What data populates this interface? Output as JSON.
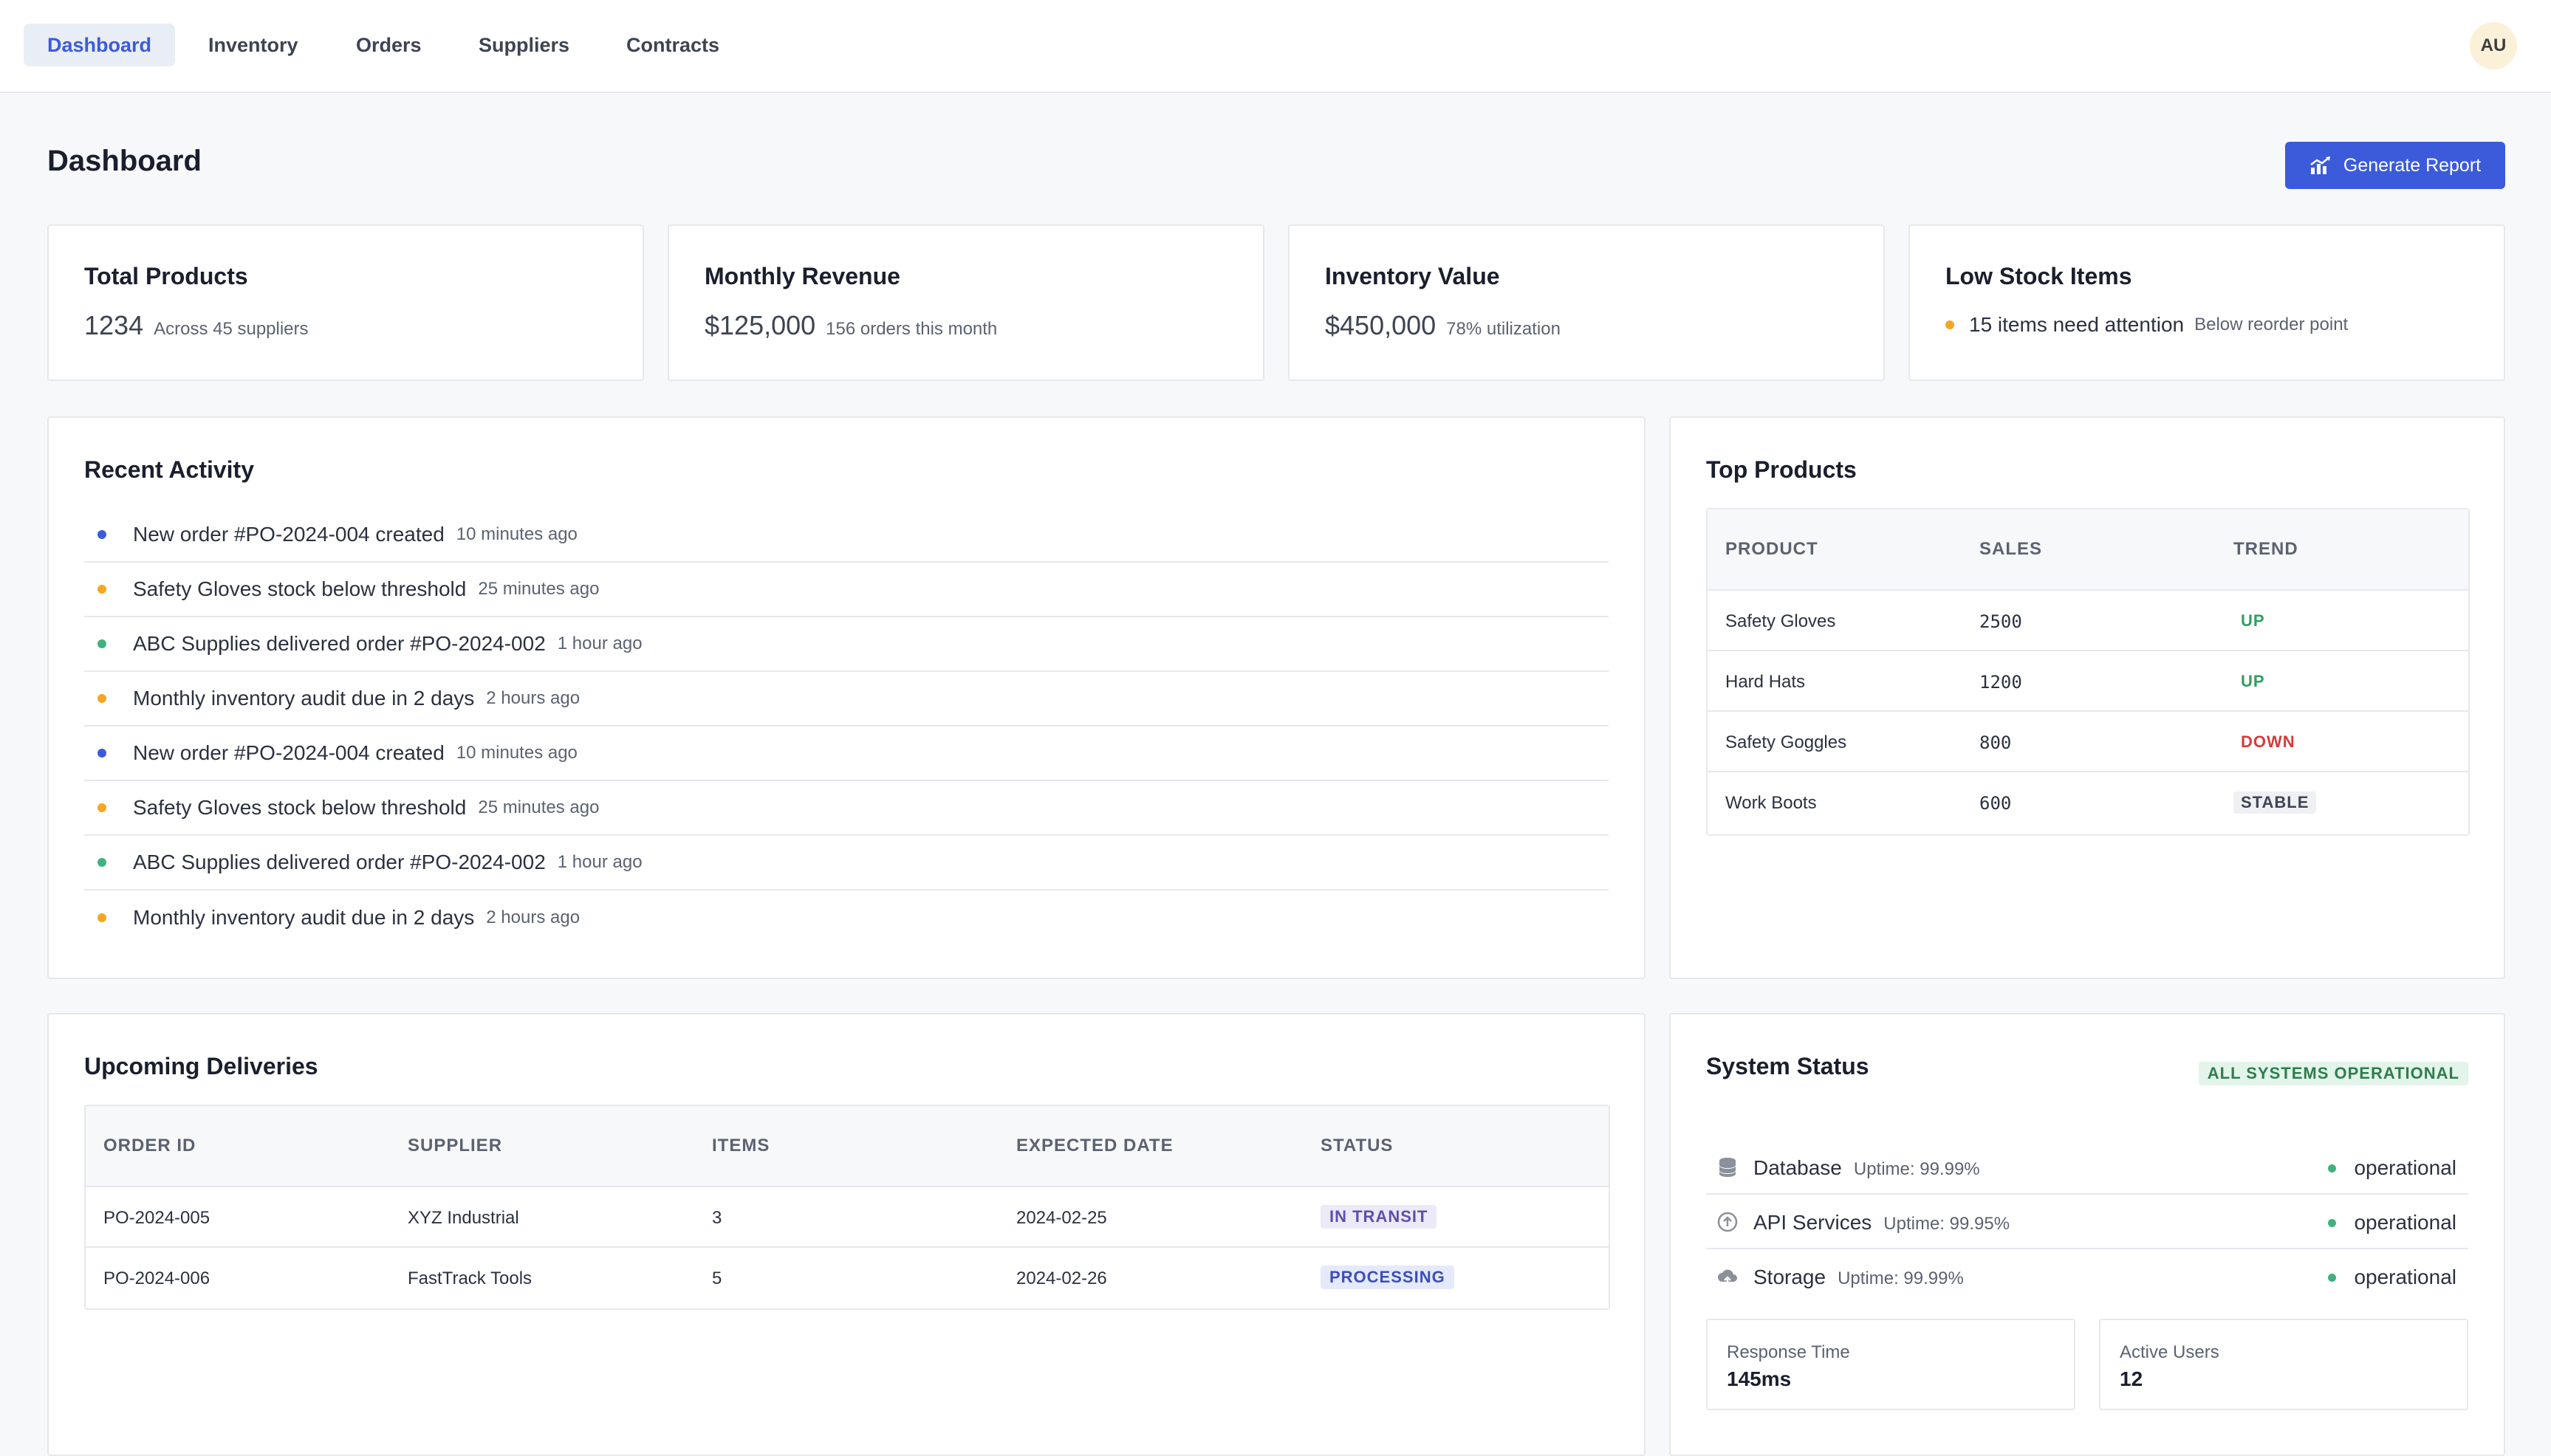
{
  "nav": {
    "tabs": [
      {
        "label": "Dashboard",
        "active": true
      },
      {
        "label": "Inventory"
      },
      {
        "label": "Orders"
      },
      {
        "label": "Suppliers"
      },
      {
        "label": "Contracts"
      }
    ],
    "avatar_initials": "AU"
  },
  "header": {
    "title": "Dashboard",
    "generate_label": "Generate Report"
  },
  "stats": [
    {
      "title": "Total Products",
      "value": "1234",
      "sub": "Across 45 suppliers"
    },
    {
      "title": "Monthly Revenue",
      "value": "$125,000",
      "sub": "156 orders this month"
    },
    {
      "title": "Inventory Value",
      "value": "$450,000",
      "sub": "78% utilization"
    },
    {
      "title": "Low Stock Items",
      "value": "15 items need attention",
      "sub": "Below reorder point",
      "dot_color": "#f5a623"
    }
  ],
  "activity": {
    "title": "Recent Activity",
    "items": [
      {
        "text": "New order #PO-2024-004 created",
        "time": "10 minutes ago",
        "color": "#3b5bdb"
      },
      {
        "text": "Safety Gloves stock below threshold",
        "time": "25 minutes ago",
        "color": "#f5a623"
      },
      {
        "text": "ABC Supplies delivered order #PO-2024-002",
        "time": "1 hour ago",
        "color": "#3fb27f"
      },
      {
        "text": "Monthly inventory audit due in 2 days",
        "time": "2 hours ago",
        "color": "#f5a623"
      },
      {
        "text": "New order #PO-2024-004 created",
        "time": "10 minutes ago",
        "color": "#3b5bdb"
      },
      {
        "text": "Safety Gloves stock below threshold",
        "time": "25 minutes ago",
        "color": "#f5a623"
      },
      {
        "text": "ABC Supplies delivered order #PO-2024-002",
        "time": "1 hour ago",
        "color": "#3fb27f"
      },
      {
        "text": "Monthly inventory audit due in 2 days",
        "time": "2 hours ago",
        "color": "#f5a623"
      }
    ]
  },
  "top_products": {
    "title": "Top Products",
    "columns": [
      "PRODUCT",
      "SALES",
      "TREND"
    ],
    "rows": [
      {
        "product": "Safety Gloves",
        "sales": "2500",
        "trend": "UP",
        "trend_color": "#2f9e5f"
      },
      {
        "product": "Hard Hats",
        "sales": "1200",
        "trend": "UP",
        "trend_color": "#2f9e5f"
      },
      {
        "product": "Safety Goggles",
        "sales": "800",
        "trend": "DOWN",
        "trend_color": "#d63b3b"
      },
      {
        "product": "Work Boots",
        "sales": "600",
        "trend": "STABLE",
        "trend_color": "#3d4452"
      }
    ]
  },
  "deliveries": {
    "title": "Upcoming Deliveries",
    "columns": [
      "ORDER ID",
      "SUPPLIER",
      "ITEMS",
      "EXPECTED DATE",
      "STATUS"
    ],
    "rows": [
      {
        "order_id": "PO-2024-005",
        "supplier": "XYZ Industrial",
        "items": "3",
        "date": "2024-02-25",
        "status": "IN TRANSIT"
      },
      {
        "order_id": "PO-2024-006",
        "supplier": "FastTrack Tools",
        "items": "5",
        "date": "2024-02-26",
        "status": "PROCESSING"
      }
    ]
  },
  "system": {
    "title": "System Status",
    "badge": "ALL SYSTEMS OPERATIONAL",
    "services": [
      {
        "name": "Database",
        "uptime": "Uptime: 99.99%",
        "state": "operational",
        "icon": "database-icon"
      },
      {
        "name": "API Services",
        "uptime": "Uptime: 99.95%",
        "state": "operational",
        "icon": "api-icon"
      },
      {
        "name": "Storage",
        "uptime": "Uptime: 99.99%",
        "state": "operational",
        "icon": "cloud-upload-icon"
      }
    ],
    "metrics": [
      {
        "label": "Response Time",
        "value": "145ms"
      },
      {
        "label": "Active Users",
        "value": "12"
      }
    ]
  }
}
